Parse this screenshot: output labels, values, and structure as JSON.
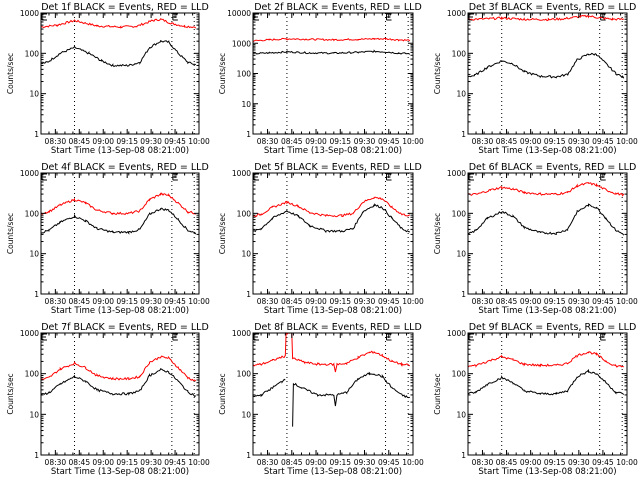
{
  "page": {
    "background": "#ffffff"
  },
  "colors": {
    "events": "#000000",
    "lld": "#ff0000",
    "axes": "#000000"
  },
  "chart_data": [
    {
      "type": "line",
      "title": "Det 1f BLACK = Events, RED = LLD",
      "xlabel": "Start Time (13-Sep-08 08:21:00)",
      "ylabel": "Counts/sec",
      "yscale": "log",
      "ylim": [
        1,
        1000
      ],
      "ytick_labels": [
        "1",
        "10",
        "100",
        "1000"
      ],
      "xlim_minutes": [
        0,
        99
      ],
      "xtick_minutes": [
        9,
        24,
        39,
        54,
        69,
        84,
        99
      ],
      "xtick_labels": [
        "08:30",
        "08:45",
        "09:00",
        "09:15",
        "09:30",
        "09:45",
        "10:00"
      ],
      "vlines_minutes": [
        21,
        82,
        96
      ],
      "markers": [
        "E",
        "E"
      ],
      "series": [
        {
          "name": "LLD",
          "color": "#ff0000",
          "x": [
            0,
            10,
            21,
            35,
            50,
            60,
            70,
            75,
            82,
            90,
            97
          ],
          "y": [
            450,
            500,
            650,
            480,
            450,
            470,
            650,
            700,
            550,
            470,
            450
          ]
        },
        {
          "name": "Events",
          "color": "#000000",
          "x": [
            0,
            4,
            12,
            21,
            30,
            38,
            45,
            55,
            62,
            68,
            75,
            80,
            86,
            92,
            97
          ],
          "y": [
            55,
            60,
            100,
            140,
            100,
            65,
            50,
            50,
            60,
            140,
            200,
            190,
            100,
            60,
            52
          ]
        }
      ]
    },
    {
      "type": "line",
      "title": "Det 2f BLACK = Events, RED = LLD",
      "xlabel": "Start Time (13-Sep-08 08:21:00)",
      "ylabel": "Counts/sec",
      "yscale": "log",
      "ylim": [
        1,
        10000
      ],
      "ytick_labels": [
        "1",
        "10",
        "100",
        "1000",
        "10000"
      ],
      "xlim_minutes": [
        0,
        99
      ],
      "xtick_minutes": [
        9,
        24,
        39,
        54,
        69,
        84,
        99
      ],
      "xtick_labels": [
        "08:30",
        "08:45",
        "09:00",
        "09:15",
        "09:30",
        "09:45",
        "10:00"
      ],
      "vlines_minutes": [
        21,
        82,
        96
      ],
      "markers": [
        "E",
        "E"
      ],
      "series": [
        {
          "name": "LLD",
          "color": "#ff0000",
          "x": [
            0,
            10,
            21,
            35,
            50,
            65,
            75,
            82,
            90,
            97
          ],
          "y": [
            1200,
            1300,
            1400,
            1350,
            1300,
            1350,
            1400,
            1400,
            1300,
            1250
          ]
        },
        {
          "name": "Events",
          "color": "#000000",
          "x": [
            0,
            10,
            21,
            35,
            50,
            65,
            75,
            82,
            90,
            97
          ],
          "y": [
            450,
            480,
            520,
            480,
            470,
            500,
            540,
            520,
            470,
            450
          ]
        }
      ]
    },
    {
      "type": "line",
      "title": "Det 3f BLACK = Events, RED = LLD",
      "xlabel": "Start Time (13-Sep-08 08:21:00)",
      "ylabel": "Counts/sec",
      "yscale": "log",
      "ylim": [
        1,
        1000
      ],
      "ytick_labels": [
        "1",
        "10",
        "100",
        "1000"
      ],
      "xlim_minutes": [
        0,
        99
      ],
      "xtick_minutes": [
        9,
        24,
        39,
        54,
        69,
        84,
        99
      ],
      "xtick_labels": [
        "08:30",
        "08:45",
        "09:00",
        "09:15",
        "09:30",
        "09:45",
        "10:00"
      ],
      "vlines_minutes": [
        21,
        82,
        96
      ],
      "markers": [
        "E",
        "E"
      ],
      "series": [
        {
          "name": "LLD",
          "color": "#ff0000",
          "x": [
            0,
            10,
            21,
            35,
            50,
            60,
            70,
            75,
            82,
            90,
            97
          ],
          "y": [
            700,
            710,
            750,
            700,
            690,
            720,
            820,
            840,
            760,
            700,
            700
          ]
        },
        {
          "name": "Events",
          "color": "#000000",
          "x": [
            0,
            4,
            12,
            21,
            28,
            35,
            45,
            55,
            62,
            68,
            75,
            80,
            86,
            92,
            97
          ],
          "y": [
            27,
            28,
            45,
            65,
            55,
            35,
            27,
            26,
            30,
            70,
            95,
            95,
            55,
            32,
            25
          ]
        }
      ]
    },
    {
      "type": "line",
      "title": "Det 4f BLACK = Events, RED = LLD",
      "xlabel": "Start Time (13-Sep-08 08:21:00)",
      "ylabel": "Counts/sec",
      "yscale": "log",
      "ylim": [
        1,
        1000
      ],
      "ytick_labels": [
        "1",
        "10",
        "100",
        "1000"
      ],
      "xlim_minutes": [
        0,
        99
      ],
      "xtick_minutes": [
        9,
        24,
        39,
        54,
        69,
        84,
        99
      ],
      "xtick_labels": [
        "08:30",
        "08:45",
        "09:00",
        "09:15",
        "09:30",
        "09:45",
        "10:00"
      ],
      "vlines_minutes": [
        21,
        82,
        96
      ],
      "markers": [
        "E",
        "E"
      ],
      "series": [
        {
          "name": "LLD",
          "color": "#ff0000",
          "x": [
            0,
            5,
            12,
            21,
            28,
            35,
            45,
            55,
            62,
            68,
            75,
            80,
            86,
            92,
            97
          ],
          "y": [
            100,
            110,
            160,
            220,
            180,
            120,
            100,
            100,
            115,
            220,
            300,
            280,
            180,
            110,
            100
          ]
        },
        {
          "name": "Events",
          "color": "#000000",
          "x": [
            0,
            5,
            12,
            21,
            28,
            35,
            45,
            55,
            62,
            68,
            75,
            80,
            86,
            92,
            97
          ],
          "y": [
            33,
            38,
            60,
            85,
            65,
            42,
            34,
            34,
            40,
            95,
            130,
            120,
            70,
            38,
            32
          ]
        }
      ]
    },
    {
      "type": "line",
      "title": "Det 5f BLACK = Events, RED = LLD",
      "xlabel": "Start Time (13-Sep-08 08:21:00)",
      "ylabel": "Counts/sec",
      "yscale": "log",
      "ylim": [
        1,
        1000
      ],
      "ytick_labels": [
        "1",
        "10",
        "100",
        "1000"
      ],
      "xlim_minutes": [
        0,
        99
      ],
      "xtick_minutes": [
        9,
        24,
        39,
        54,
        69,
        84,
        99
      ],
      "xtick_labels": [
        "08:30",
        "08:45",
        "09:00",
        "09:15",
        "09:30",
        "09:45",
        "10:00"
      ],
      "vlines_minutes": [
        21,
        82,
        96
      ],
      "markers": [
        "E",
        "E"
      ],
      "series": [
        {
          "name": "LLD",
          "color": "#ff0000",
          "x": [
            0,
            5,
            12,
            21,
            28,
            35,
            45,
            55,
            62,
            68,
            75,
            80,
            86,
            92,
            97
          ],
          "y": [
            85,
            95,
            140,
            190,
            150,
            105,
            88,
            88,
            100,
            190,
            250,
            230,
            140,
            95,
            88
          ]
        },
        {
          "name": "Events",
          "color": "#000000",
          "x": [
            0,
            5,
            12,
            21,
            28,
            35,
            45,
            55,
            62,
            68,
            75,
            80,
            86,
            92,
            97
          ],
          "y": [
            35,
            42,
            75,
            115,
            85,
            50,
            37,
            36,
            42,
            110,
            160,
            140,
            75,
            42,
            34
          ]
        }
      ]
    },
    {
      "type": "line",
      "title": "Det 6f BLACK = Events, RED = LLD",
      "xlabel": "Start Time (13-Sep-08 08:21:00)",
      "ylabel": "Counts/sec",
      "yscale": "log",
      "ylim": [
        1,
        1000
      ],
      "ytick_labels": [
        "1",
        "10",
        "100",
        "1000"
      ],
      "xlim_minutes": [
        0,
        99
      ],
      "xtick_minutes": [
        9,
        24,
        39,
        54,
        69,
        84,
        99
      ],
      "xtick_labels": [
        "08:30",
        "08:45",
        "09:00",
        "09:15",
        "09:30",
        "09:45",
        "10:00"
      ],
      "vlines_minutes": [
        21,
        82,
        96
      ],
      "markers": [
        "E",
        "E"
      ],
      "series": [
        {
          "name": "LLD",
          "color": "#ff0000",
          "x": [
            0,
            6,
            14,
            21,
            28,
            35,
            45,
            55,
            62,
            68,
            75,
            80,
            86,
            92,
            97
          ],
          "y": [
            290,
            300,
            380,
            440,
            400,
            330,
            300,
            300,
            330,
            480,
            560,
            500,
            380,
            310,
            290
          ]
        },
        {
          "name": "Events",
          "color": "#000000",
          "x": [
            0,
            5,
            12,
            21,
            28,
            35,
            45,
            55,
            62,
            68,
            75,
            80,
            86,
            92,
            97
          ],
          "y": [
            30,
            38,
            75,
            110,
            85,
            45,
            33,
            32,
            40,
            110,
            160,
            140,
            75,
            38,
            30
          ]
        }
      ]
    },
    {
      "type": "line",
      "title": "Det 7f BLACK = Events, RED = LLD",
      "xlabel": "Start Time (13-Sep-08 08:21:00)",
      "ylabel": "Counts/sec",
      "yscale": "log",
      "ylim": [
        1,
        1000
      ],
      "ytick_labels": [
        "1",
        "10",
        "100",
        "1000"
      ],
      "xlim_minutes": [
        0,
        99
      ],
      "xtick_minutes": [
        9,
        24,
        39,
        54,
        69,
        84,
        99
      ],
      "xtick_labels": [
        "08:30",
        "08:45",
        "09:00",
        "09:15",
        "09:30",
        "09:45",
        "10:00"
      ],
      "vlines_minutes": [
        21,
        82,
        96
      ],
      "markers": [
        "E",
        "E"
      ],
      "series": [
        {
          "name": "LLD",
          "color": "#ff0000",
          "x": [
            0,
            5,
            12,
            21,
            28,
            35,
            45,
            55,
            62,
            68,
            75,
            80,
            86,
            92,
            97
          ],
          "y": [
            70,
            80,
            130,
            180,
            140,
            90,
            75,
            75,
            85,
            190,
            260,
            240,
            140,
            80,
            65
          ]
        },
        {
          "name": "Events",
          "color": "#000000",
          "x": [
            0,
            5,
            12,
            21,
            28,
            35,
            45,
            55,
            62,
            68,
            75,
            80,
            86,
            92,
            97
          ],
          "y": [
            30,
            34,
            55,
            85,
            65,
            40,
            32,
            32,
            38,
            90,
            125,
            110,
            65,
            36,
            28
          ]
        }
      ]
    },
    {
      "type": "line",
      "title": "Det 8f BLACK = Events, RED = LLD",
      "xlabel": "Start Time (13-Sep-08 08:21:00)",
      "ylabel": "Counts/sec",
      "yscale": "log",
      "ylim": [
        1,
        1000
      ],
      "ytick_labels": [
        "1",
        "10",
        "100",
        "1000"
      ],
      "xlim_minutes": [
        0,
        99
      ],
      "xtick_minutes": [
        9,
        24,
        39,
        54,
        69,
        84,
        99
      ],
      "xtick_labels": [
        "08:30",
        "08:45",
        "09:00",
        "09:15",
        "09:30",
        "09:45",
        "10:00"
      ],
      "vlines_minutes": [
        21,
        82,
        96
      ],
      "markers": [
        "E",
        "E"
      ],
      "series": [
        {
          "name": "LLD",
          "color": "#ff0000",
          "x": [
            0,
            5,
            12,
            18,
            20,
            20.5,
            24,
            24.5,
            26,
            32,
            40,
            50,
            51,
            52,
            58,
            65,
            72,
            75,
            80,
            86,
            92,
            97
          ],
          "y": [
            160,
            170,
            210,
            260,
            270,
            1000,
            1000,
            240,
            230,
            190,
            170,
            170,
            110,
            170,
            180,
            250,
            330,
            340,
            280,
            200,
            170,
            160
          ]
        },
        {
          "name": "Events",
          "color": "#000000",
          "x": [
            0,
            5,
            12,
            18,
            20,
            21,
            24,
            24.5,
            25,
            30,
            40,
            50,
            51,
            52,
            58,
            65,
            72,
            75,
            80,
            86,
            92,
            97
          ],
          "y": [
            27,
            30,
            45,
            65,
            75,
            null,
            null,
            5,
            58,
            45,
            30,
            30,
            16,
            30,
            35,
            75,
            100,
            100,
            85,
            45,
            30,
            25
          ]
        }
      ]
    },
    {
      "type": "line",
      "title": "Det 9f BLACK = Events, RED = LLD",
      "xlabel": "Start Time (13-Sep-08 08:21:00)",
      "ylabel": "Counts/sec",
      "yscale": "log",
      "ylim": [
        1,
        1000
      ],
      "ytick_labels": [
        "1",
        "10",
        "100",
        "1000"
      ],
      "xlim_minutes": [
        0,
        99
      ],
      "xtick_minutes": [
        9,
        24,
        39,
        54,
        69,
        84,
        99
      ],
      "xtick_labels": [
        "08:30",
        "08:45",
        "09:00",
        "09:15",
        "09:30",
        "09:45",
        "10:00"
      ],
      "vlines_minutes": [
        21,
        82,
        96
      ],
      "markers": [
        "E",
        "E"
      ],
      "series": [
        {
          "name": "LLD",
          "color": "#ff0000",
          "x": [
            0,
            5,
            12,
            21,
            28,
            35,
            45,
            55,
            62,
            68,
            75,
            80,
            86,
            92,
            97
          ],
          "y": [
            150,
            160,
            200,
            260,
            220,
            170,
            160,
            160,
            180,
            280,
            340,
            300,
            200,
            155,
            150
          ]
        },
        {
          "name": "Events",
          "color": "#000000",
          "x": [
            0,
            5,
            12,
            21,
            28,
            35,
            45,
            55,
            62,
            68,
            75,
            80,
            86,
            92,
            97
          ],
          "y": [
            32,
            35,
            55,
            80,
            60,
            38,
            32,
            32,
            38,
            85,
            115,
            100,
            60,
            35,
            32
          ]
        }
      ]
    }
  ]
}
